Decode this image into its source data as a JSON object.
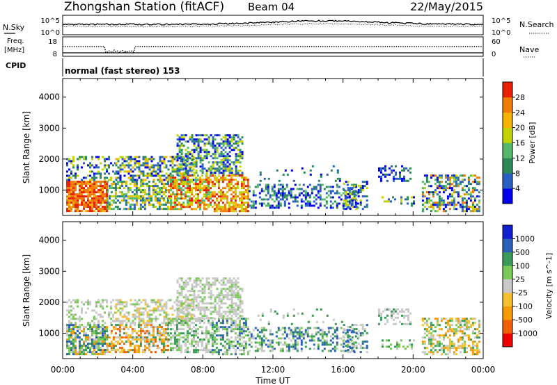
{
  "header": {
    "station": "Zhongshan Station (fitACF)",
    "beam": "Beam 04",
    "date": "22/May/2015"
  },
  "noise_panel": {
    "left_label": "N.Sky",
    "right_label": "N.Search",
    "left_ticks": [
      "10^5",
      "10^0"
    ],
    "right_ticks": [
      "10^5",
      "10^0"
    ]
  },
  "freq_panel": {
    "left_label": "Freq.",
    "left_unit": "[MHz]",
    "right_label": "Nave",
    "left_ticks": [
      "18",
      "8"
    ],
    "right_ticks": [
      "60",
      "0"
    ]
  },
  "cpid_panel": {
    "label": "CPID",
    "text": "normal (fast stereo) 153"
  },
  "chart_data": [
    {
      "type": "heatmap",
      "name": "power",
      "ylabel": "Slant Range [km]",
      "xlabel": "",
      "ylim": [
        180,
        4600
      ],
      "yticks": [
        "1000",
        "2000",
        "3000",
        "4000"
      ],
      "ytick_values": [
        1000,
        2000,
        3000,
        4000
      ],
      "colorbar": {
        "label": "Power [dB]",
        "colors": [
          "#0000ee",
          "#2a5fc4",
          "#2a8a5a",
          "#54b86a",
          "#c2d400",
          "#f5b300",
          "#f07b00",
          "#e82000"
        ],
        "ticks": [
          "4",
          "8",
          "12",
          "16",
          "20",
          "24",
          "28"
        ]
      },
      "regions": [
        {
          "t0": 0.2,
          "t1": 2.5,
          "r0": 300,
          "r1": 1300,
          "palette": [
            7,
            6,
            5,
            7,
            6
          ],
          "density": 0.85
        },
        {
          "t0": 0.2,
          "t1": 3.0,
          "r0": 1300,
          "r1": 2100,
          "palette": [
            1,
            2,
            0,
            4
          ],
          "density": 0.35
        },
        {
          "t0": 2.5,
          "t1": 6.0,
          "r0": 400,
          "r1": 1300,
          "palette": [
            1,
            2,
            3,
            4,
            5
          ],
          "density": 0.55
        },
        {
          "t0": 3.0,
          "t1": 7.5,
          "r0": 1300,
          "r1": 2100,
          "palette": [
            0,
            1,
            2,
            4,
            5
          ],
          "density": 0.55
        },
        {
          "t0": 6.0,
          "t1": 8.5,
          "r0": 400,
          "r1": 1500,
          "palette": [
            4,
            5,
            6,
            7,
            3
          ],
          "density": 0.7
        },
        {
          "t0": 6.5,
          "t1": 10.2,
          "r0": 1500,
          "r1": 2800,
          "palette": [
            0,
            1,
            2,
            3,
            4
          ],
          "density": 0.55
        },
        {
          "t0": 8.5,
          "t1": 10.6,
          "r0": 300,
          "r1": 1500,
          "palette": [
            6,
            7,
            5,
            4
          ],
          "density": 0.65
        },
        {
          "t0": 10.6,
          "t1": 16.8,
          "r0": 400,
          "r1": 1200,
          "palette": [
            0,
            1,
            2,
            3
          ],
          "density": 0.4
        },
        {
          "t0": 11.0,
          "t1": 16.0,
          "r0": 1300,
          "r1": 1800,
          "palette": [
            0,
            1,
            2
          ],
          "density": 0.12
        },
        {
          "t0": 16.0,
          "t1": 17.4,
          "r0": 400,
          "r1": 1300,
          "palette": [
            0,
            1,
            2,
            4
          ],
          "density": 0.4
        },
        {
          "t0": 18.0,
          "t1": 19.8,
          "r0": 1300,
          "r1": 1800,
          "palette": [
            0,
            1,
            2
          ],
          "density": 0.45
        },
        {
          "t0": 18.2,
          "t1": 20.0,
          "r0": 500,
          "r1": 800,
          "palette": [
            0,
            1,
            2,
            4
          ],
          "density": 0.3
        },
        {
          "t0": 20.5,
          "t1": 23.8,
          "r0": 300,
          "r1": 1500,
          "palette": [
            0,
            1,
            2,
            3,
            4,
            6
          ],
          "density": 0.5
        }
      ]
    },
    {
      "type": "heatmap",
      "name": "velocity",
      "ylabel": "Slant Range [km]",
      "xlabel": "Time UT",
      "ylim": [
        180,
        4600
      ],
      "yticks": [
        "1000",
        "2000",
        "3000",
        "4000"
      ],
      "ytick_values": [
        1000,
        2000,
        3000,
        4000
      ],
      "xticks": [
        "00:00",
        "04:00",
        "08:00",
        "12:00",
        "16:00",
        "20:00",
        "00:00"
      ],
      "xtick_values": [
        0,
        4,
        8,
        12,
        16,
        20,
        24
      ],
      "xlim": [
        0,
        24
      ],
      "colorbar": {
        "label": "Velocity [m s^-1]",
        "colors": [
          "#ee0000",
          "#f06000",
          "#f59a00",
          "#f5c030",
          "#c8c8c8",
          "#7cc85a",
          "#3a9a5a",
          "#2a60b8",
          "#1020d0"
        ],
        "ticks": [
          "1000",
          "500",
          "100",
          "25",
          "-25",
          "-100",
          "-500",
          "-1000"
        ]
      },
      "regions": [
        {
          "t0": 0.2,
          "t1": 2.5,
          "r0": 300,
          "r1": 1300,
          "palette": [
            6,
            5,
            7,
            4,
            2
          ],
          "density": 0.75
        },
        {
          "t0": 0.2,
          "t1": 3.0,
          "r0": 1300,
          "r1": 2100,
          "palette": [
            4,
            4,
            5
          ],
          "density": 0.3
        },
        {
          "t0": 2.5,
          "t1": 6.0,
          "r0": 400,
          "r1": 1300,
          "palette": [
            2,
            1,
            3,
            4,
            6
          ],
          "density": 0.55
        },
        {
          "t0": 3.0,
          "t1": 7.5,
          "r0": 1300,
          "r1": 2100,
          "palette": [
            4,
            4,
            3,
            5
          ],
          "density": 0.5
        },
        {
          "t0": 6.0,
          "t1": 8.5,
          "r0": 400,
          "r1": 1500,
          "palette": [
            4,
            4,
            5,
            6
          ],
          "density": 0.6
        },
        {
          "t0": 6.5,
          "t1": 10.2,
          "r0": 1500,
          "r1": 2800,
          "palette": [
            4,
            4,
            4,
            5
          ],
          "density": 0.55
        },
        {
          "t0": 8.5,
          "t1": 10.6,
          "r0": 300,
          "r1": 1500,
          "palette": [
            4,
            6,
            7,
            5
          ],
          "density": 0.6
        },
        {
          "t0": 10.6,
          "t1": 16.8,
          "r0": 400,
          "r1": 1200,
          "palette": [
            6,
            7,
            5,
            4
          ],
          "density": 0.4
        },
        {
          "t0": 11.0,
          "t1": 16.0,
          "r0": 1300,
          "r1": 1800,
          "palette": [
            4,
            6
          ],
          "density": 0.12
        },
        {
          "t0": 16.0,
          "t1": 17.4,
          "r0": 400,
          "r1": 1300,
          "palette": [
            6,
            7,
            4
          ],
          "density": 0.4
        },
        {
          "t0": 18.0,
          "t1": 19.8,
          "r0": 1300,
          "r1": 1800,
          "palette": [
            4,
            4,
            6
          ],
          "density": 0.45
        },
        {
          "t0": 18.2,
          "t1": 20.0,
          "r0": 500,
          "r1": 800,
          "palette": [
            6,
            5,
            4
          ],
          "density": 0.3
        },
        {
          "t0": 20.5,
          "t1": 23.8,
          "r0": 300,
          "r1": 1500,
          "palette": [
            2,
            3,
            5,
            6,
            4
          ],
          "density": 0.5
        }
      ]
    }
  ]
}
